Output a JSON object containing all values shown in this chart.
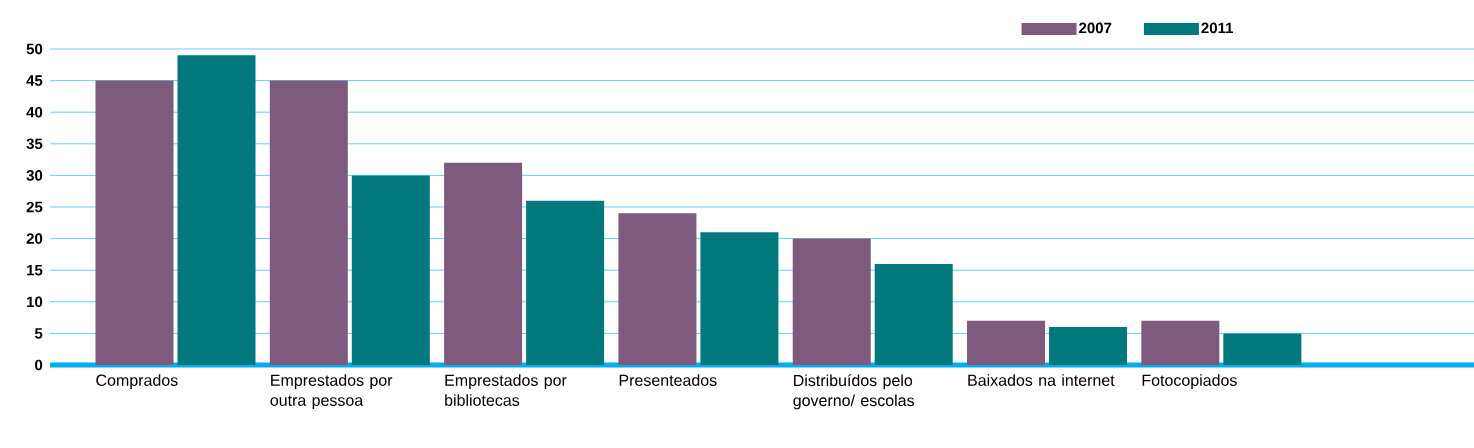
{
  "chart_data": {
    "type": "bar",
    "categories": [
      "Comprados",
      "Emprestados por outra pessoa",
      "Emprestados por bibliotecas",
      "Presenteados",
      "Distribuídos pelo governo/ escolas",
      "Baixados na internet",
      "Fotocopiados"
    ],
    "series": [
      {
        "name": "2007",
        "color": "#7d5a7e",
        "values": [
          45,
          45,
          32,
          24,
          20,
          7,
          7
        ]
      },
      {
        "name": "2011",
        "color": "#00787c",
        "values": [
          49,
          30,
          26,
          21,
          16,
          6,
          5
        ]
      }
    ],
    "ylim": [
      0,
      50
    ],
    "yticks": [
      0,
      5,
      10,
      15,
      20,
      25,
      30,
      35,
      40,
      45,
      50
    ],
    "grid": "y",
    "legend": "top right"
  }
}
